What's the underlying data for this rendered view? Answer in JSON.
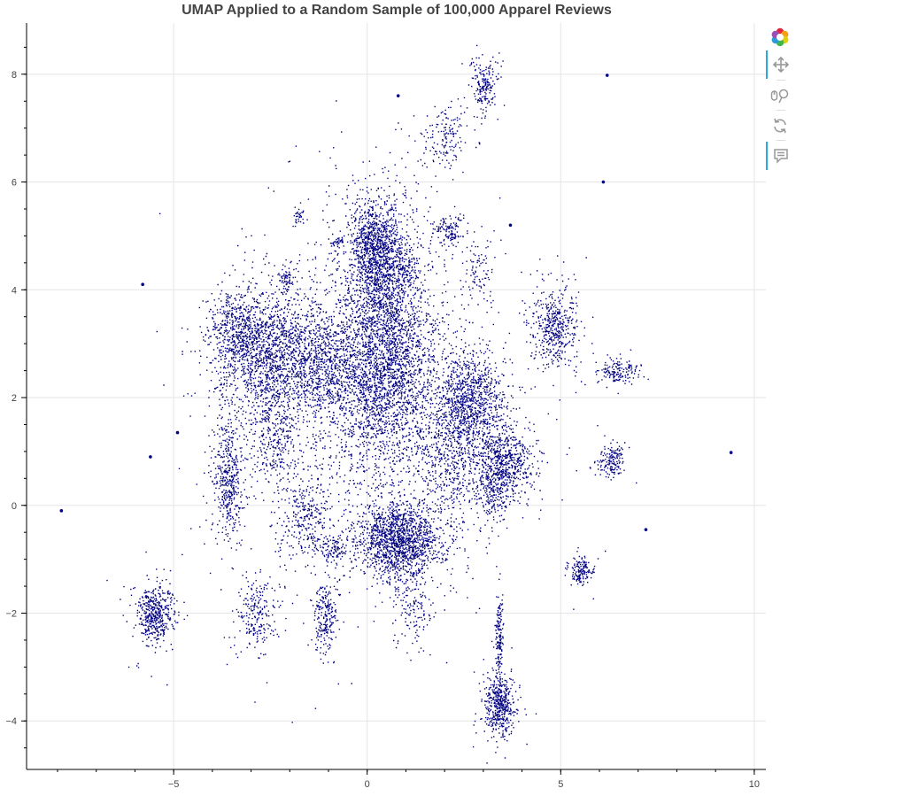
{
  "chart_data": {
    "type": "scatter",
    "title": "UMAP Applied to a Random Sample of 100,000 Apparel Reviews",
    "xlabel": "",
    "ylabel": "",
    "xlim": [
      -8.8,
      10.3
    ],
    "ylim": [
      -4.9,
      8.95
    ],
    "x_ticks": [
      -5,
      0,
      5,
      10
    ],
    "x_tick_labels": [
      "−5",
      "0",
      "5",
      "10"
    ],
    "y_ticks": [
      -4,
      -2,
      0,
      2,
      4,
      6,
      8
    ],
    "y_tick_labels": [
      "−4",
      "−2",
      "0",
      "2",
      "4",
      "6",
      "8"
    ],
    "grid": true,
    "legend": "none",
    "point_color": "#000080",
    "clusters": [
      {
        "cx": 0.3,
        "cy": 2.5,
        "sx": 0.9,
        "sy": 1.0,
        "w": 20
      },
      {
        "cx": 0.5,
        "cy": 3.8,
        "sx": 0.4,
        "sy": 1.0,
        "w": 6
      },
      {
        "cx": 0.2,
        "cy": 4.8,
        "sx": 0.35,
        "sy": 0.4,
        "w": 6
      },
      {
        "cx": 0.8,
        "cy": -0.6,
        "sx": 0.55,
        "sy": 0.35,
        "w": 10
      },
      {
        "cx": -2.6,
        "cy": 2.8,
        "sx": 0.6,
        "sy": 0.6,
        "w": 9
      },
      {
        "cx": -3.4,
        "cy": 3.2,
        "sx": 0.35,
        "sy": 0.4,
        "w": 3
      },
      {
        "cx": -1.3,
        "cy": 2.6,
        "sx": 0.45,
        "sy": 0.45,
        "w": 4
      },
      {
        "cx": 2.7,
        "cy": 2.0,
        "sx": 0.4,
        "sy": 0.4,
        "w": 5
      },
      {
        "cx": 2.2,
        "cy": 1.0,
        "sx": 0.5,
        "sy": 0.6,
        "w": 4
      },
      {
        "cx": 3.5,
        "cy": 0.8,
        "sx": 0.35,
        "sy": 0.35,
        "w": 5
      },
      {
        "cx": -3.6,
        "cy": 0.5,
        "sx": 0.2,
        "sy": 0.5,
        "w": 3
      },
      {
        "cx": -1.6,
        "cy": -0.2,
        "sx": 0.3,
        "sy": 0.4,
        "w": 2
      },
      {
        "cx": -2.4,
        "cy": 1.4,
        "sx": 0.3,
        "sy": 0.5,
        "w": 2
      },
      {
        "cx": -5.5,
        "cy": -2.0,
        "sx": 0.22,
        "sy": 0.25,
        "w": 3
      },
      {
        "cx": 3.4,
        "cy": -3.7,
        "sx": 0.18,
        "sy": 0.25,
        "w": 3
      },
      {
        "cx": 3.4,
        "cy": -2.5,
        "sx": 0.05,
        "sy": 0.4,
        "w": 1
      },
      {
        "cx": 5.5,
        "cy": -1.2,
        "sx": 0.15,
        "sy": 0.12,
        "w": 1
      },
      {
        "cx": 4.8,
        "cy": 3.3,
        "sx": 0.3,
        "sy": 0.35,
        "w": 3
      },
      {
        "cx": 6.5,
        "cy": 2.5,
        "sx": 0.25,
        "sy": 0.12,
        "w": 1
      },
      {
        "cx": 6.3,
        "cy": 0.8,
        "sx": 0.15,
        "sy": 0.15,
        "w": 1
      },
      {
        "cx": 2.0,
        "cy": 6.8,
        "sx": 0.3,
        "sy": 0.3,
        "w": 1
      },
      {
        "cx": 3.0,
        "cy": 7.8,
        "sx": 0.15,
        "sy": 0.25,
        "w": 1.2
      },
      {
        "cx": -1.1,
        "cy": -2.1,
        "sx": 0.15,
        "sy": 0.35,
        "w": 1.5
      },
      {
        "cx": -2.9,
        "cy": -2.0,
        "sx": 0.25,
        "sy": 0.35,
        "w": 1.5
      },
      {
        "cx": 1.2,
        "cy": -1.8,
        "sx": 0.25,
        "sy": 0.35,
        "w": 1
      },
      {
        "cx": 2.1,
        "cy": 5.1,
        "sx": 0.2,
        "sy": 0.15,
        "w": 0.8
      },
      {
        "cx": -2.1,
        "cy": 4.2,
        "sx": 0.1,
        "sy": 0.1,
        "w": 0.4
      },
      {
        "cx": -1.8,
        "cy": 5.4,
        "sx": 0.07,
        "sy": 0.08,
        "w": 0.2
      },
      {
        "cx": -0.8,
        "cy": 4.9,
        "sx": 0.1,
        "sy": 0.05,
        "w": 0.2
      },
      {
        "cx": 1.0,
        "cy": 4.4,
        "sx": 0.2,
        "sy": 0.2,
        "w": 0.6
      },
      {
        "cx": 2.9,
        "cy": 4.3,
        "sx": 0.15,
        "sy": 0.25,
        "w": 0.5
      },
      {
        "cx": 3.2,
        "cy": 0.1,
        "sx": 0.2,
        "sy": 0.15,
        "w": 0.6
      },
      {
        "cx": -0.9,
        "cy": -0.8,
        "sx": 0.15,
        "sy": 0.15,
        "w": 0.6
      }
    ],
    "isolated_points": [
      {
        "x": -5.8,
        "y": 4.1
      },
      {
        "x": -5.6,
        "y": 0.9
      },
      {
        "x": -4.9,
        "y": 1.35
      },
      {
        "x": -7.9,
        "y": -0.1
      },
      {
        "x": 9.4,
        "y": 0.98
      },
      {
        "x": 7.2,
        "y": -0.45
      },
      {
        "x": 6.2,
        "y": 7.98
      },
      {
        "x": 6.1,
        "y": 6.0
      },
      {
        "x": 0.8,
        "y": 7.6
      },
      {
        "x": 3.7,
        "y": 5.2
      }
    ]
  },
  "toolbar": {
    "tools": [
      {
        "name": "bokeh-logo-icon"
      },
      {
        "name": "pan-tool-icon"
      },
      {
        "name": "wheel-zoom-tool-icon"
      },
      {
        "name": "reset-tool-icon"
      },
      {
        "name": "hover-tool-icon"
      }
    ]
  }
}
